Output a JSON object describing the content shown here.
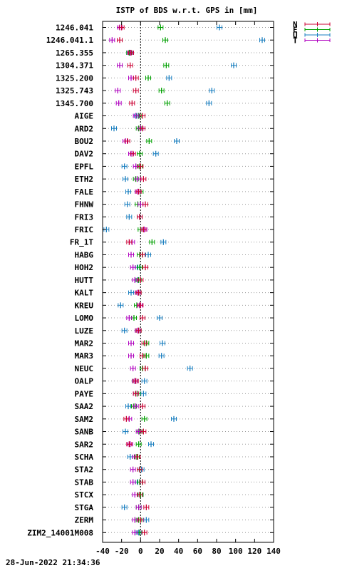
{
  "chart_data": {
    "type": "scatter",
    "title": "ISTP of BDS w.r.t. GPS in [mm]",
    "timestamp": "28-Jun-2022 21:34:36",
    "xlim": [
      -40,
      140
    ],
    "xticks": [
      -40,
      -20,
      0,
      20,
      40,
      60,
      80,
      100,
      120,
      140
    ],
    "grid": true,
    "legend_position": "top-right",
    "categories": [
      "1246.041",
      "1246.041.1",
      "1265.355",
      "1304.371",
      "1325.200",
      "1325.743",
      "1345.700",
      "AIGE",
      "ARD2",
      "BOU2",
      "DAV2",
      "EPFL",
      "ETH2",
      "FALE",
      "FHNW",
      "FRI3",
      "FRIC",
      "FR_1T",
      "HABG",
      "HOH2",
      "HUTT",
      "KALT",
      "KREU",
      "LOMO",
      "LUZE",
      "MAR2",
      "MAR3",
      "NEUC",
      "OALP",
      "PAYE",
      "SAA2",
      "SAM2",
      "SANB",
      "SAR2",
      "SCHA",
      "STA2",
      "STAB",
      "STCX",
      "STGA",
      "ZERM",
      "ZIM2_14001M008"
    ],
    "series": [
      {
        "name": "N",
        "color": "#cc0033",
        "values": [
          -20,
          -22,
          -10,
          -11,
          -5,
          -5,
          -9,
          2,
          2,
          -14,
          -8,
          0,
          3,
          -2,
          5,
          -1,
          3,
          -12,
          2,
          5,
          0,
          -2,
          0,
          2,
          -2,
          4,
          2,
          5,
          -5,
          -5,
          2,
          -15,
          3,
          -12,
          -3,
          -1,
          2,
          -1,
          6,
          0,
          4
        ]
      },
      {
        "name": "E",
        "color": "#00a000",
        "values": [
          21,
          26,
          -12,
          27,
          8,
          22,
          28,
          -2,
          -2,
          9,
          -1,
          -1,
          -5,
          0,
          -3,
          -1,
          0,
          12,
          -1,
          -1,
          -2,
          -2,
          -4,
          -7,
          -2,
          6,
          6,
          2,
          -6,
          -3,
          -7,
          4,
          -1,
          -2,
          -4,
          -1,
          -1,
          0,
          -2,
          -2,
          -1
        ]
      },
      {
        "name": "U",
        "color": "#1a7fc0",
        "values": [
          83,
          128,
          -12,
          98,
          30,
          75,
          72,
          -4,
          -28,
          38,
          16,
          -17,
          -16,
          -13,
          -14,
          -12,
          -36,
          24,
          8,
          -3,
          -3,
          -10,
          -21,
          20,
          -17,
          23,
          22,
          52,
          4,
          3,
          -13,
          35,
          -16,
          11,
          -11,
          1,
          -3,
          0,
          -17,
          6,
          -2
        ]
      },
      {
        "name": "T",
        "color": "#b000c0",
        "values": [
          -22,
          -30,
          -11,
          -22,
          -10,
          -24,
          -23,
          -5,
          0,
          -16,
          -10,
          -5,
          -3,
          -3,
          0,
          -1,
          4,
          -9,
          -10,
          -8,
          -6,
          -3,
          -1,
          -12,
          -3,
          -10,
          -10,
          -8,
          -6,
          -5,
          -5,
          -12,
          -2,
          -11,
          -6,
          -8,
          -8,
          -6,
          -2,
          -6,
          -6
        ]
      }
    ]
  }
}
